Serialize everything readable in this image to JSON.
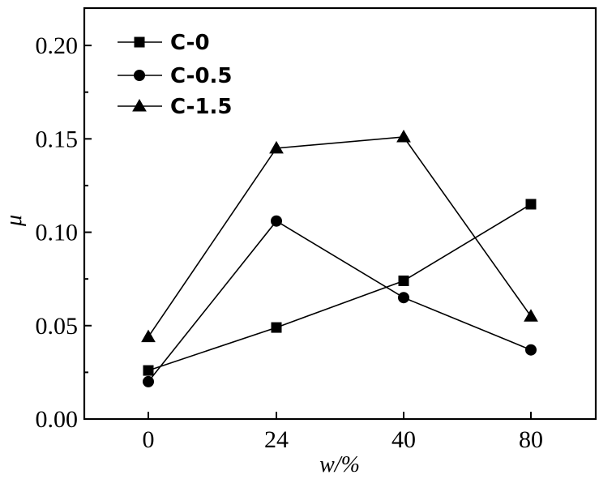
{
  "chart_data": {
    "type": "line",
    "categories": [
      "0",
      "24",
      "40",
      "80"
    ],
    "xlabel": "w/%",
    "ylabel": "μ",
    "ylim": [
      0,
      0.22
    ],
    "yticks": [
      "0.00",
      "0.05",
      "0.10",
      "0.15",
      "0.20"
    ],
    "ytick_values": [
      0,
      0.05,
      0.1,
      0.15,
      0.2
    ],
    "grid": false,
    "legend_position": "top-left",
    "series": [
      {
        "name": "C-0",
        "marker": "square",
        "values": [
          0.026,
          0.049,
          0.074,
          0.115
        ]
      },
      {
        "name": "C-0.5",
        "marker": "circle",
        "values": [
          0.02,
          0.106,
          0.065,
          0.037
        ]
      },
      {
        "name": "C-1.5",
        "marker": "triangle",
        "values": [
          0.044,
          0.145,
          0.151,
          0.055
        ]
      }
    ],
    "colors": {
      "line": "#000000",
      "background": "#ffffff"
    }
  }
}
